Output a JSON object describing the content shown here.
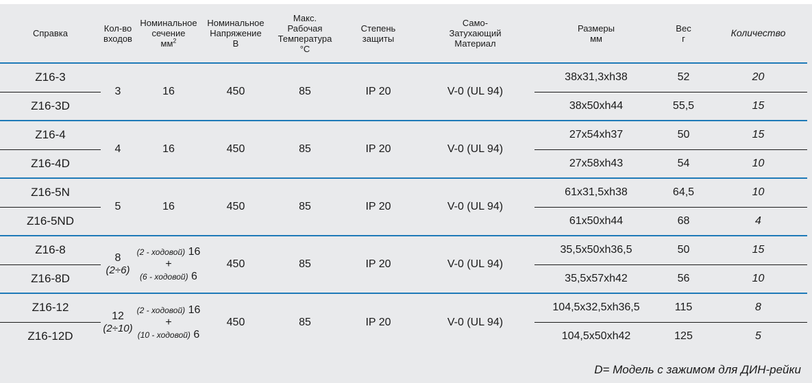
{
  "headers": {
    "ref": "Справка",
    "inputs": [
      "Кол-во",
      "входов"
    ],
    "section": [
      "Номинальное",
      "сечение",
      "мм"
    ],
    "section_sup": "2",
    "voltage": [
      "Номинальное",
      "Напряжение",
      "В"
    ],
    "temp": [
      "Макс.",
      "Рабочая",
      "Температура"
    ],
    "temp_unit": "°C",
    "protection": [
      "Степень",
      "защиты"
    ],
    "material": [
      "Само-",
      "Затухающий",
      "Материал"
    ],
    "size": [
      "Размеры",
      "мм"
    ],
    "weight": [
      "Вес",
      "г"
    ],
    "qty": "Количество"
  },
  "groups": [
    {
      "inputs": "3",
      "inputs_sub": "",
      "section": "16",
      "section_parts": [],
      "voltage": "450",
      "temp": "85",
      "protection": "IP 20",
      "material": "V-0 (UL 94)",
      "rows": [
        {
          "code": "Z16-3",
          "size": "38x31,3xh38",
          "weight": "52",
          "qty": "20"
        },
        {
          "code": "Z16-3D",
          "size": "38x50xh44",
          "weight": "55,5",
          "qty": "15"
        }
      ]
    },
    {
      "inputs": "4",
      "inputs_sub": "",
      "section": "16",
      "section_parts": [],
      "voltage": "450",
      "temp": "85",
      "protection": "IP 20",
      "material": "V-0 (UL 94)",
      "rows": [
        {
          "code": "Z16-4",
          "size": "27x54xh37",
          "weight": "50",
          "qty": "15"
        },
        {
          "code": "Z16-4D",
          "size": "27x58xh43",
          "weight": "54",
          "qty": "10"
        }
      ]
    },
    {
      "inputs": "5",
      "inputs_sub": "",
      "section": "16",
      "section_parts": [],
      "voltage": "450",
      "temp": "85",
      "protection": "IP 20",
      "material": "V-0 (UL 94)",
      "rows": [
        {
          "code": "Z16-5N",
          "size": "61x31,5xh38",
          "weight": "64,5",
          "qty": "10"
        },
        {
          "code": "Z16-5ND",
          "size": "61x50xh44",
          "weight": "68",
          "qty": "4"
        }
      ]
    },
    {
      "inputs": "8",
      "inputs_sub": "(2÷6)",
      "section": "",
      "section_parts": [
        {
          "note": "(2 - ходовой)",
          "value": "16"
        },
        {
          "note": "+",
          "value": ""
        },
        {
          "note": "(6 - ходовой)",
          "value": "6"
        }
      ],
      "voltage": "450",
      "temp": "85",
      "protection": "IP 20",
      "material": "V-0 (UL 94)",
      "rows": [
        {
          "code": "Z16-8",
          "size": "35,5x50xh36,5",
          "weight": "50",
          "qty": "15"
        },
        {
          "code": "Z16-8D",
          "size": "35,5x57xh42",
          "weight": "56",
          "qty": "10"
        }
      ]
    },
    {
      "inputs": "12",
      "inputs_sub": "(2÷10)",
      "section": "",
      "section_parts": [
        {
          "note": "(2 - ходовой)",
          "value": "16"
        },
        {
          "note": "+",
          "value": ""
        },
        {
          "note": "(10 - ходовой)",
          "value": "6"
        }
      ],
      "voltage": "450",
      "temp": "85",
      "protection": "IP 20",
      "material": "V-0 (UL 94)",
      "rows": [
        {
          "code": "Z16-12",
          "size": "104,5x32,5xh36,5",
          "weight": "115",
          "qty": "8"
        },
        {
          "code": "Z16-12D",
          "size": "104,5x50xh42",
          "weight": "125",
          "qty": "5"
        }
      ]
    }
  ],
  "footnote": "D= Модель с зажимом для ДИН-рейки"
}
